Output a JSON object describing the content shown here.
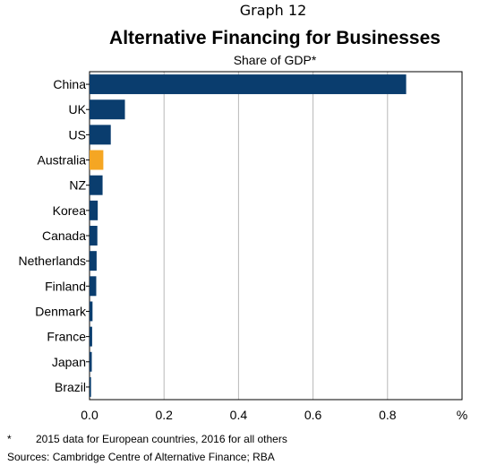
{
  "header": {
    "graph_number": "Graph 12",
    "title": "Alternative Financing for Businesses",
    "subtitle": "Share of GDP*"
  },
  "chart_data": {
    "type": "bar",
    "orientation": "horizontal",
    "title": "Alternative Financing for Businesses",
    "subtitle": "Share of GDP*",
    "categories": [
      "China",
      "UK",
      "US",
      "Australia",
      "NZ",
      "Korea",
      "Canada",
      "Netherlands",
      "Finland",
      "Denmark",
      "France",
      "Japan",
      "Brazil"
    ],
    "values": [
      0.85,
      0.095,
      0.057,
      0.037,
      0.035,
      0.022,
      0.021,
      0.019,
      0.018,
      0.008,
      0.007,
      0.006,
      0.004
    ],
    "xlim": [
      0,
      1.0
    ],
    "xticks": [
      "0.0",
      "0.2",
      "0.4",
      "0.6",
      "0.8"
    ],
    "xtick_values": [
      0,
      0.2,
      0.4,
      0.6,
      0.8
    ],
    "xunit": "%",
    "grid": "vertical",
    "colors": {
      "default": "#0a3d6e",
      "highlight": "#f5a623"
    },
    "highlight_category": "Australia"
  },
  "footnotes": {
    "star": "*",
    "note": "2015 data for European countries, 2016 for all others",
    "sources": "Sources:  Cambridge Centre of Alternative Finance; RBA"
  }
}
